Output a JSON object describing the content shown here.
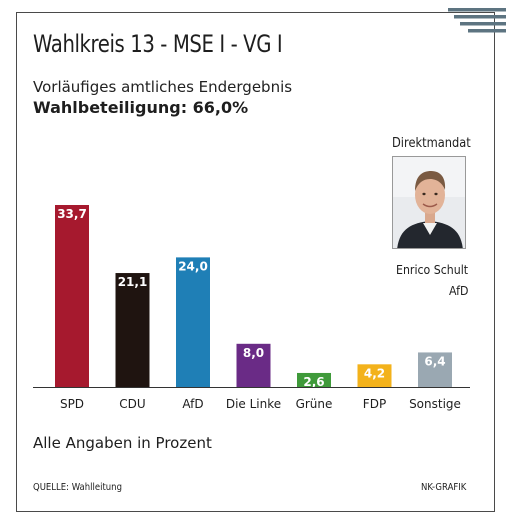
{
  "header": {
    "title": "Wahlkreis 13 - MSE I - VG I",
    "subtitle": "Vorläufiges amtliches Endergebnis",
    "turnout": "Wahlbeteiligung: 66,0%"
  },
  "direktmandat": {
    "heading": "Direktmandat",
    "name": "Enrico Schult",
    "party": "AfD"
  },
  "footer": {
    "note": "Alle Angaben in Prozent",
    "source": "QUELLE: Wahlleitung",
    "credit": "NK-GRAFIK"
  },
  "chart_data": {
    "type": "bar",
    "categories": [
      "SPD",
      "CDU",
      "AfD",
      "Die Linke",
      "Grüne",
      "FDP",
      "Sonstige"
    ],
    "values": [
      33.7,
      21.1,
      24.0,
      8.0,
      2.6,
      4.2,
      6.4
    ],
    "value_labels": [
      "33,7",
      "21,1",
      "24,0",
      "8,0",
      "2,6",
      "4,2",
      "6,4"
    ],
    "colors": [
      "#a6192e",
      "#1f1410",
      "#1f7fb6",
      "#6a2b86",
      "#3f9a3a",
      "#f3b21b",
      "#9aa8b2"
    ],
    "ylim": [
      0,
      33.7
    ],
    "grid": false,
    "legend": "none"
  }
}
